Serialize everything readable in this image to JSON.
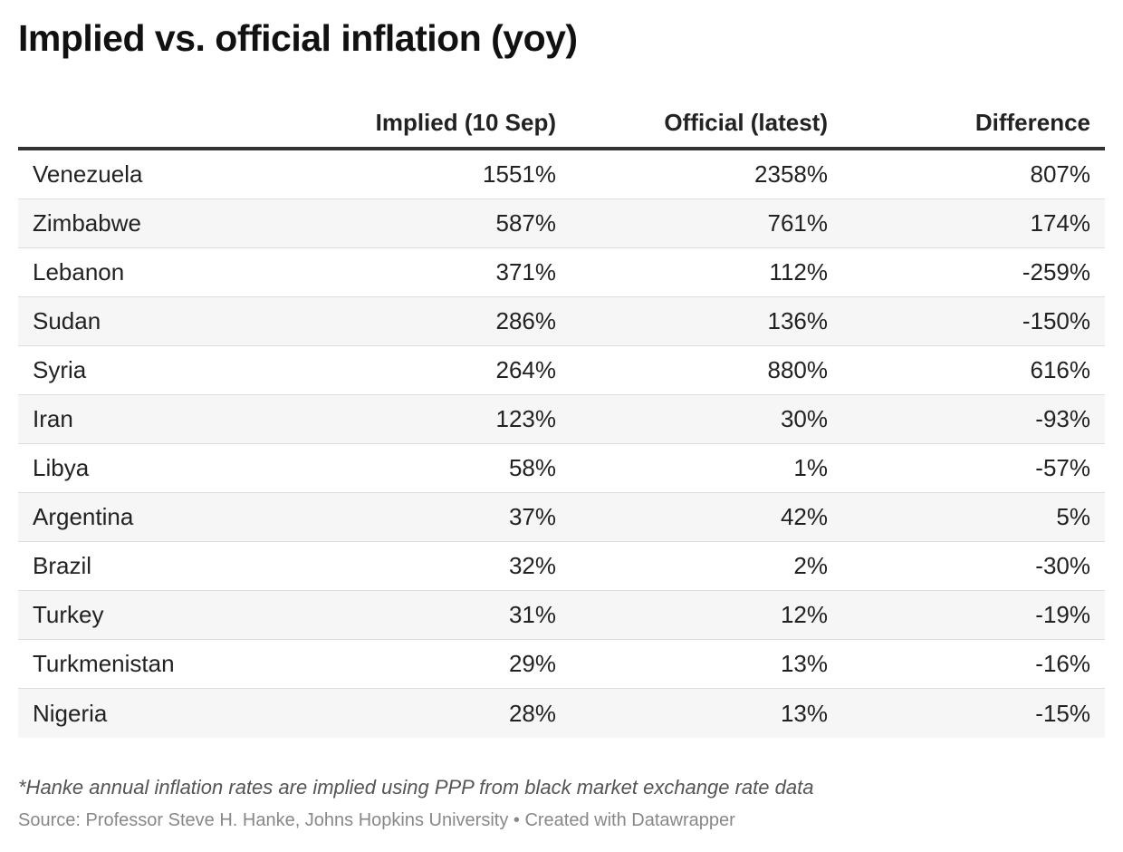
{
  "chart_data": {
    "type": "table",
    "title": "Implied vs. official inflation (yoy)",
    "columns": [
      "",
      "Implied (10 Sep)",
      "Official (latest)",
      "Difference"
    ],
    "rows": [
      {
        "country": "Venezuela",
        "implied": "1551%",
        "official": "2358%",
        "difference": "807%"
      },
      {
        "country": "Zimbabwe",
        "implied": "587%",
        "official": "761%",
        "difference": "174%"
      },
      {
        "country": "Lebanon",
        "implied": "371%",
        "official": "112%",
        "difference": "-259%"
      },
      {
        "country": "Sudan",
        "implied": "286%",
        "official": "136%",
        "difference": "-150%"
      },
      {
        "country": "Syria",
        "implied": "264%",
        "official": "880%",
        "difference": "616%"
      },
      {
        "country": "Iran",
        "implied": "123%",
        "official": "30%",
        "difference": "-93%"
      },
      {
        "country": "Libya",
        "implied": "58%",
        "official": "1%",
        "difference": "-57%"
      },
      {
        "country": "Argentina",
        "implied": "37%",
        "official": "42%",
        "difference": "5%"
      },
      {
        "country": "Brazil",
        "implied": "32%",
        "official": "2%",
        "difference": "-30%"
      },
      {
        "country": "Turkey",
        "implied": "31%",
        "official": "12%",
        "difference": "-19%"
      },
      {
        "country": "Turkmenistan",
        "implied": "29%",
        "official": "13%",
        "difference": "-16%"
      },
      {
        "country": "Nigeria",
        "implied": "28%",
        "official": "13%",
        "difference": "-15%"
      }
    ],
    "note": "*Hanke annual inflation rates are implied using PPP from black market exchange rate data",
    "source": "Source: Professor Steve H. Hanke, Johns Hopkins University • Created with Datawrapper"
  }
}
